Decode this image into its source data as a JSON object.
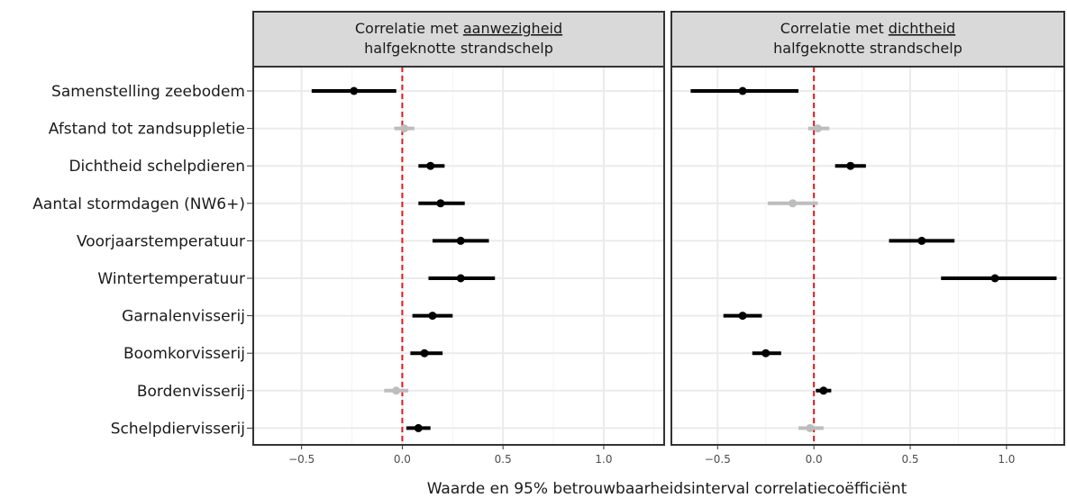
{
  "chart_data": {
    "type": "scatter",
    "subtype": "forest-plot",
    "xlabel": "Waarde en 95% betrouwbaarheidsinterval correlatiecoëfficiënt",
    "xticks": [
      "−0.5",
      "0.0",
      "0.5",
      "1.0"
    ],
    "xtick_values": [
      -0.5,
      0.0,
      0.5,
      1.0
    ],
    "xlim": [
      -0.74,
      1.3
    ],
    "reference_line": 0.0,
    "grid": true,
    "colors": {
      "significant": "#000000",
      "not_significant": "#bdbdbd",
      "reference_line": "#e41a1c",
      "strip_background": "#d9d9d9",
      "grid": "#ebebeb"
    },
    "categories": [
      "Samenstelling zeebodem",
      "Afstand tot zandsuppletie",
      "Dichtheid schelpdieren",
      "Aantal stormdagen (NW6+)",
      "Voorjaarstemperatuur",
      "Wintertemperatuur",
      "Garnalenvisserij",
      "Boomkorvisserij",
      "Bordenvisserij",
      "Schelpdiervisserij"
    ],
    "panels": [
      {
        "title_prefix": "Correlatie met ",
        "title_underlined": "aanwezigheid",
        "title_line2": "halfgeknotte strandschelp",
        "points": [
          {
            "est": -0.24,
            "low": -0.45,
            "high": -0.03,
            "significant": true
          },
          {
            "est": 0.01,
            "low": -0.04,
            "high": 0.06,
            "significant": false
          },
          {
            "est": 0.14,
            "low": 0.08,
            "high": 0.21,
            "significant": true
          },
          {
            "est": 0.19,
            "low": 0.08,
            "high": 0.31,
            "significant": true
          },
          {
            "est": 0.29,
            "low": 0.15,
            "high": 0.43,
            "significant": true
          },
          {
            "est": 0.29,
            "low": 0.13,
            "high": 0.46,
            "significant": true
          },
          {
            "est": 0.15,
            "low": 0.05,
            "high": 0.25,
            "significant": true
          },
          {
            "est": 0.11,
            "low": 0.04,
            "high": 0.2,
            "significant": true
          },
          {
            "est": -0.03,
            "low": -0.09,
            "high": 0.03,
            "significant": false
          },
          {
            "est": 0.08,
            "low": 0.02,
            "high": 0.14,
            "significant": true
          }
        ]
      },
      {
        "title_prefix": "Correlatie met ",
        "title_underlined": "dichtheid",
        "title_line2": "halfgeknotte strandschelp",
        "points": [
          {
            "est": -0.37,
            "low": -0.64,
            "high": -0.08,
            "significant": true
          },
          {
            "est": 0.02,
            "low": -0.03,
            "high": 0.08,
            "significant": false
          },
          {
            "est": 0.19,
            "low": 0.11,
            "high": 0.27,
            "significant": true
          },
          {
            "est": -0.11,
            "low": -0.24,
            "high": 0.02,
            "significant": false
          },
          {
            "est": 0.56,
            "low": 0.39,
            "high": 0.73,
            "significant": true
          },
          {
            "est": 0.94,
            "low": 0.66,
            "high": 1.26,
            "significant": true
          },
          {
            "est": -0.37,
            "low": -0.47,
            "high": -0.27,
            "significant": true
          },
          {
            "est": -0.25,
            "low": -0.32,
            "high": -0.17,
            "significant": true
          },
          {
            "est": 0.05,
            "low": 0.01,
            "high": 0.09,
            "significant": true
          },
          {
            "est": -0.02,
            "low": -0.08,
            "high": 0.05,
            "significant": false
          }
        ]
      }
    ]
  }
}
